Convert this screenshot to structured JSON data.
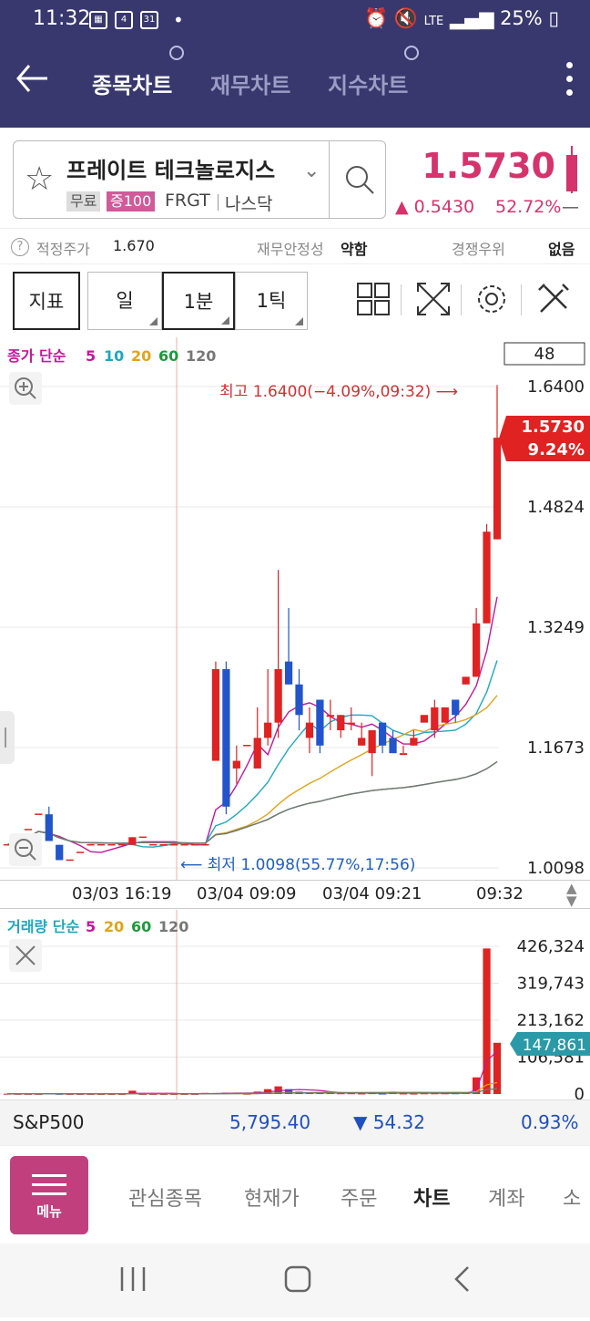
{
  "status": {
    "time": "11:32",
    "cal_day": "31",
    "notif_count": "4",
    "network": "LTE",
    "battery": "25%"
  },
  "tabs": {
    "stock_chart": "종목차트",
    "financial_chart": "재무차트",
    "index_chart": "지수차트"
  },
  "stock": {
    "name": "프레이트 테크놀로지스",
    "badge_free": "무료",
    "badge_margin": "증100",
    "ticker": "FRGT",
    "market": "나스닥",
    "price": "1.5730",
    "change": "▲ 0.5430",
    "change_pct": "52.72%",
    "dash": "—",
    "color_up": "#d6336c"
  },
  "info": {
    "fair_label": "적정주가",
    "fair_value": "1.670",
    "fin_label": "재무안정성",
    "fin_value": "약함",
    "comp_label": "경쟁우위",
    "comp_value": "없음"
  },
  "toolbar": {
    "indicator": "지표",
    "day": "일",
    "minute": "1분",
    "tick": "1틱",
    "count": "48"
  },
  "legend": {
    "price_label": "종가 단순",
    "ma": [
      "5",
      "10",
      "20",
      "60",
      "120"
    ],
    "ma_colors": [
      "#c2189e",
      "#1fa8c0",
      "#e2a31a",
      "#1e9a3a",
      "#777777"
    ],
    "vol_label": "거래량 단순",
    "vol_ma": [
      "5",
      "20",
      "60",
      "120"
    ],
    "vol_ma_colors": [
      "#c2189e",
      "#e2a31a",
      "#1e9a3a",
      "#777777"
    ]
  },
  "chart": {
    "y_labels": [
      "1.6400",
      "1.4824",
      "1.3249",
      "1.1673",
      "1.0098"
    ],
    "last_price": "1.5730",
    "last_pct": "9.24%",
    "high_note": "최고 1.6400(−4.09%,09:32) ⟶",
    "low_note": "⟵ 최저 1.0098(55.77%,17:56)",
    "x_labels": [
      "03/03 16:19",
      "03/04 09:09",
      "03/04 09:21",
      "09:32"
    ]
  },
  "chart_data": {
    "type": "candlestick",
    "y_range": [
      1.0098,
      1.64
    ],
    "candles": [
      {
        "o": 1.04,
        "h": 1.04,
        "l": 1.04,
        "c": 1.04
      },
      {
        "o": 1.05,
        "h": 1.05,
        "l": 1.05,
        "c": 1.05
      },
      {
        "o": 1.06,
        "h": 1.06,
        "l": 1.06,
        "c": 1.06
      },
      {
        "o": 1.08,
        "h": 1.08,
        "l": 1.08,
        "c": 1.08
      },
      {
        "o": 1.08,
        "h": 1.09,
        "l": 1.045,
        "c": 1.045
      },
      {
        "o": 1.04,
        "h": 1.04,
        "l": 1.02,
        "c": 1.02
      },
      {
        "o": 1.02,
        "h": 1.02,
        "l": 1.02,
        "c": 1.02
      },
      {
        "o": 1.03,
        "h": 1.03,
        "l": 1.03,
        "c": 1.03
      },
      {
        "o": 1.04,
        "h": 1.04,
        "l": 1.04,
        "c": 1.04
      },
      {
        "o": 1.04,
        "h": 1.04,
        "l": 1.04,
        "c": 1.04
      },
      {
        "o": 1.04,
        "h": 1.04,
        "l": 1.04,
        "c": 1.04
      },
      {
        "o": 1.04,
        "h": 1.04,
        "l": 1.04,
        "c": 1.04
      },
      {
        "o": 1.04,
        "h": 1.05,
        "l": 1.04,
        "c": 1.05
      },
      {
        "o": 1.05,
        "h": 1.05,
        "l": 1.05,
        "c": 1.05
      },
      {
        "o": 1.04,
        "h": 1.04,
        "l": 1.04,
        "c": 1.04
      },
      {
        "o": 1.04,
        "h": 1.04,
        "l": 1.04,
        "c": 1.04
      },
      {
        "o": 1.04,
        "h": 1.04,
        "l": 1.04,
        "c": 1.04
      },
      {
        "o": 1.04,
        "h": 1.04,
        "l": 1.04,
        "c": 1.04
      },
      {
        "o": 1.04,
        "h": 1.04,
        "l": 1.04,
        "c": 1.04
      },
      {
        "o": 1.04,
        "h": 1.04,
        "l": 1.04,
        "c": 1.04
      },
      {
        "o": 1.15,
        "h": 1.28,
        "l": 1.15,
        "c": 1.27
      },
      {
        "o": 1.27,
        "h": 1.28,
        "l": 1.08,
        "c": 1.09
      },
      {
        "o": 1.14,
        "h": 1.17,
        "l": 1.12,
        "c": 1.15
      },
      {
        "o": 1.17,
        "h": 1.17,
        "l": 1.17,
        "c": 1.17
      },
      {
        "o": 1.14,
        "h": 1.22,
        "l": 1.14,
        "c": 1.18
      },
      {
        "o": 1.18,
        "h": 1.27,
        "l": 1.17,
        "c": 1.2
      },
      {
        "o": 1.2,
        "h": 1.4,
        "l": 1.18,
        "c": 1.27
      },
      {
        "o": 1.28,
        "h": 1.35,
        "l": 1.25,
        "c": 1.25
      },
      {
        "o": 1.25,
        "h": 1.27,
        "l": 1.19,
        "c": 1.21
      },
      {
        "o": 1.18,
        "h": 1.22,
        "l": 1.16,
        "c": 1.2
      },
      {
        "o": 1.23,
        "h": 1.23,
        "l": 1.16,
        "c": 1.17
      },
      {
        "o": 1.21,
        "h": 1.23,
        "l": 1.19,
        "c": 1.21
      },
      {
        "o": 1.19,
        "h": 1.21,
        "l": 1.18,
        "c": 1.21
      },
      {
        "o": 1.2,
        "h": 1.22,
        "l": 1.19,
        "c": 1.2
      },
      {
        "o": 1.17,
        "h": 1.2,
        "l": 1.17,
        "c": 1.18
      },
      {
        "o": 1.16,
        "h": 1.19,
        "l": 1.13,
        "c": 1.19
      },
      {
        "o": 1.2,
        "h": 1.2,
        "l": 1.16,
        "c": 1.17
      },
      {
        "o": 1.18,
        "h": 1.19,
        "l": 1.16,
        "c": 1.16
      },
      {
        "o": 1.16,
        "h": 1.17,
        "l": 1.16,
        "c": 1.16
      },
      {
        "o": 1.17,
        "h": 1.19,
        "l": 1.17,
        "c": 1.18
      },
      {
        "o": 1.2,
        "h": 1.21,
        "l": 1.2,
        "c": 1.21
      },
      {
        "o": 1.19,
        "h": 1.23,
        "l": 1.18,
        "c": 1.22
      },
      {
        "o": 1.2,
        "h": 1.22,
        "l": 1.2,
        "c": 1.22
      },
      {
        "o": 1.23,
        "h": 1.23,
        "l": 1.2,
        "c": 1.21
      },
      {
        "o": 1.25,
        "h": 1.26,
        "l": 1.25,
        "c": 1.26
      },
      {
        "o": 1.26,
        "h": 1.35,
        "l": 1.26,
        "c": 1.33
      },
      {
        "o": 1.33,
        "h": 1.46,
        "l": 1.33,
        "c": 1.45
      },
      {
        "o": 1.44,
        "h": 1.64,
        "l": 1.44,
        "c": 1.573
      }
    ],
    "volume_range": [
      0,
      426324
    ],
    "volume_labels": [
      "426,324",
      "319,743",
      "213,162",
      "106,581",
      "0"
    ],
    "volume_last": "147,861",
    "volumes": [
      800,
      400,
      300,
      300,
      1600,
      400,
      200,
      200,
      200,
      200,
      200,
      200,
      9500,
      200,
      200,
      200,
      200,
      200,
      200,
      3200,
      2800,
      4000,
      2500,
      800,
      7000,
      14000,
      22000,
      14000,
      7000,
      2800,
      5500,
      3500,
      2100,
      2200,
      1500,
      2500,
      1200,
      7000,
      1500,
      1200,
      2000,
      2000,
      2000,
      2200,
      3000,
      48000,
      420000,
      147861
    ]
  },
  "index_bar": {
    "name": "S&P500",
    "value": "5,795.40",
    "change": "▼ 54.32",
    "pct": "0.93%"
  },
  "bottom_nav": {
    "menu": "메뉴",
    "items": [
      "관심종목",
      "현재가",
      "주문",
      "차트",
      "계좌",
      "소"
    ]
  }
}
